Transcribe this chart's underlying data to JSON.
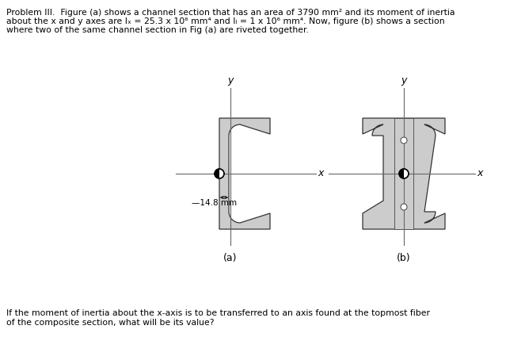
{
  "title_line1": "Problem III.  Figure (a) shows a channel section that has an area of 3790 mm² and its moment of inertia",
  "title_line2": "about the x and y axes are Iₓ = 25.3 x 10⁶ mm⁴ and Iₗ = 1 x 10⁶ mm⁴. Now, figure (b) shows a section",
  "title_line3": "where two of the same channel section in Fig (a) are riveted together.",
  "bottom_text": "If the moment of inertia about the x-axis is to be transferred to an axis found at the topmost fiber\nof the composite section, what will be its value?",
  "label_a": "(a)",
  "label_b": "(b)",
  "dim_label": "—14.8 mm",
  "channel_fill": "#cccccc",
  "bg_color": "#ffffff"
}
